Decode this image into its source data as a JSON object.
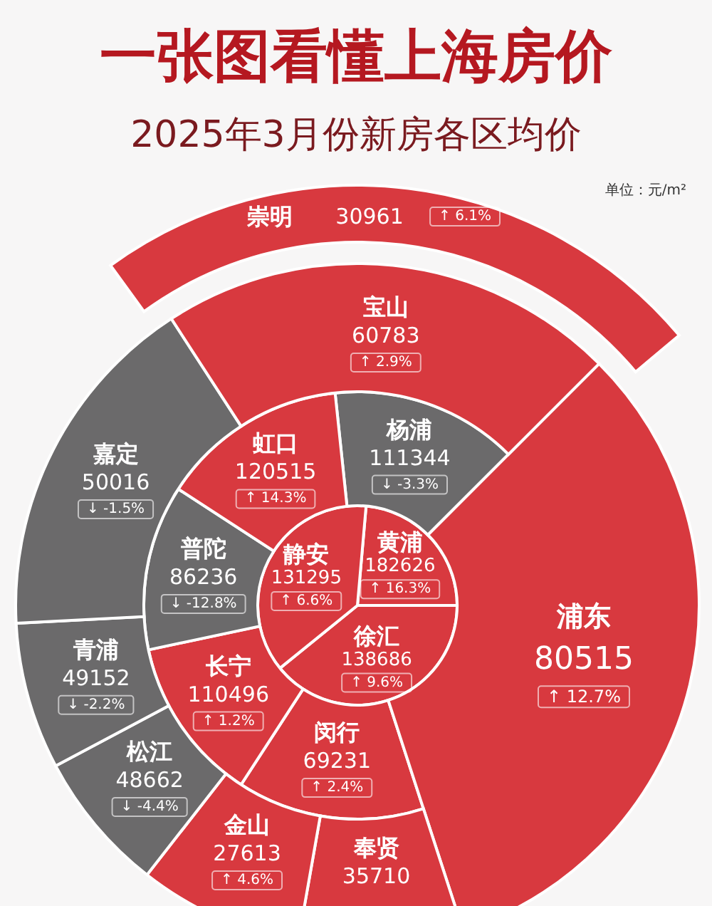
{
  "chart_data": {
    "type": "other",
    "title": "一张图看懂上海房价",
    "subtitle": "2025年3月份新房各区均价",
    "data_labels": true,
    "categories": [
      "黄浦",
      "徐汇",
      "静安",
      "杨浦",
      "闵行",
      "长宁",
      "普陀",
      "虹口",
      "浦东",
      "奉贤",
      "金山",
      "松江",
      "青浦",
      "嘉定",
      "宝山",
      "崇明"
    ],
    "series": [
      {
        "values": [
          182626,
          138686,
          131295,
          null,
          null,
          null,
          null,
          null,
          null,
          null,
          null,
          null,
          null,
          null,
          null,
          null
        ],
        "colors": [
          "#d8393f",
          "#d8393f",
          "#d8393f",
          null,
          null,
          null,
          null,
          null,
          null,
          null,
          null,
          null,
          null,
          null,
          null,
          null
        ]
      },
      {
        "values": [
          null,
          null,
          null,
          111344,
          69231,
          110496,
          86236,
          120515,
          null,
          null,
          null,
          null,
          null,
          null,
          null,
          null
        ],
        "colors": [
          null,
          null,
          null,
          "#6b6a6b",
          "#d8393f",
          "#d8393f",
          "#6b6a6b",
          "#d8393f",
          null,
          null,
          null,
          null,
          null,
          null,
          null,
          null
        ]
      },
      {
        "values": [
          null,
          null,
          null,
          null,
          null,
          null,
          null,
          null,
          80515,
          null,
          null,
          null,
          null,
          null,
          null,
          null
        ],
        "colors": [
          null,
          null,
          null,
          null,
          null,
          null,
          null,
          null,
          "#d8393f",
          null,
          null,
          null,
          null,
          null,
          null,
          null
        ]
      },
      {
        "values": [
          null,
          null,
          null,
          null,
          null,
          null,
          null,
          null,
          null,
          35710,
          27613,
          48662,
          49152,
          50016,
          60783,
          null
        ],
        "colors": [
          null,
          null,
          null,
          null,
          null,
          null,
          null,
          null,
          null,
          "#d8393f",
          "#d8393f",
          "#6b6a6b",
          "#6b6a6b",
          "#6b6a6b",
          "#d8393f",
          null
        ]
      },
      {
        "values": [
          null,
          null,
          null,
          null,
          null,
          null,
          null,
          null,
          null,
          null,
          null,
          null,
          null,
          null,
          null,
          30961
        ],
        "colors": [
          null,
          null,
          null,
          null,
          null,
          null,
          null,
          null,
          null,
          null,
          null,
          null,
          null,
          null,
          null,
          "#d8393f"
        ]
      }
    ],
    "annotations": [
      "单位：元/m²",
      {
        "text": "↑ 16.3%",
        "x": "黄浦"
      },
      {
        "text": "↑ 9.6%",
        "x": "徐汇"
      },
      {
        "text": "↑ 6.6%",
        "x": "静安"
      },
      {
        "text": "↓ -3.3%",
        "x": "杨浦"
      },
      {
        "text": "↑ 2.4%",
        "x": "闵行"
      },
      {
        "text": "↑ 1.2%",
        "x": "长宁"
      },
      {
        "text": "↓ -12.8%",
        "x": "普陀"
      },
      {
        "text": "↑ 14.3%",
        "x": "虹口"
      },
      {
        "text": "↑ 12.7%",
        "x": "浦东"
      },
      {
        "text": "↑ 4.6%",
        "x": "金山"
      },
      {
        "text": "↓ -4.4%",
        "x": "松江"
      },
      {
        "text": "↓ -2.2%",
        "x": "青浦"
      },
      {
        "text": "↓ -1.5%",
        "x": "嘉定"
      },
      {
        "text": "↑ 2.9%",
        "x": "宝山"
      },
      {
        "text": "↑ 6.1%",
        "x": "崇明"
      }
    ]
  }
}
